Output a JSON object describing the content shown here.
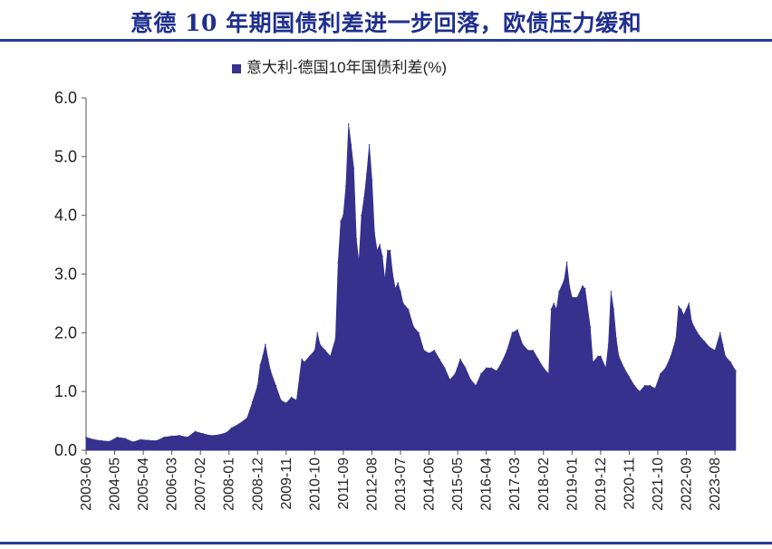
{
  "title": "意德 10 年期国债利差进一步回落，欧债压力缓和",
  "colors": {
    "title": "#1f2f8f",
    "rule": "#2b3a9c",
    "series": "#35318d"
  },
  "chart_data": {
    "type": "area",
    "legend": {
      "label": "意大利-德国10年国债利差(%)",
      "position": "top"
    },
    "ylim": [
      0,
      6
    ],
    "yticks": [
      "0.0",
      "1.0",
      "2.0",
      "3.0",
      "4.0",
      "5.0",
      "6.0"
    ],
    "xlabels": [
      "2003-06",
      "2004-05",
      "2005-04",
      "2006-03",
      "2007-02",
      "2008-01",
      "2008-12",
      "2009-11",
      "2010-10",
      "2011-09",
      "2012-08",
      "2013-07",
      "2014-06",
      "2015-05",
      "2016-04",
      "2017-03",
      "2018-02",
      "2019-01",
      "2019-12",
      "2020-11",
      "2021-10",
      "2022-09",
      "2023-08"
    ],
    "x_start": "2003-06",
    "x_end": "2024-04",
    "series": [
      {
        "name": "意大利-德国10年国债利差(%)",
        "points": [
          [
            "2003-06",
            0.22
          ],
          [
            "2003-09",
            0.18
          ],
          [
            "2003-12",
            0.16
          ],
          [
            "2004-03",
            0.15
          ],
          [
            "2004-06",
            0.22
          ],
          [
            "2004-09",
            0.2
          ],
          [
            "2004-12",
            0.14
          ],
          [
            "2005-03",
            0.18
          ],
          [
            "2005-06",
            0.17
          ],
          [
            "2005-09",
            0.16
          ],
          [
            "2005-12",
            0.22
          ],
          [
            "2006-03",
            0.24
          ],
          [
            "2006-06",
            0.25
          ],
          [
            "2006-09",
            0.22
          ],
          [
            "2006-12",
            0.32
          ],
          [
            "2007-03",
            0.28
          ],
          [
            "2007-06",
            0.25
          ],
          [
            "2007-09",
            0.26
          ],
          [
            "2007-12",
            0.3
          ],
          [
            "2008-02",
            0.38
          ],
          [
            "2008-05",
            0.45
          ],
          [
            "2008-08",
            0.55
          ],
          [
            "2008-10",
            0.82
          ],
          [
            "2008-12",
            1.1
          ],
          [
            "2009-01",
            1.45
          ],
          [
            "2009-02",
            1.6
          ],
          [
            "2009-03",
            1.8
          ],
          [
            "2009-04",
            1.55
          ],
          [
            "2009-05",
            1.35
          ],
          [
            "2009-07",
            1.1
          ],
          [
            "2009-09",
            0.85
          ],
          [
            "2009-11",
            0.8
          ],
          [
            "2010-01",
            0.9
          ],
          [
            "2010-03",
            0.85
          ],
          [
            "2010-05",
            1.55
          ],
          [
            "2010-06",
            1.5
          ],
          [
            "2010-08",
            1.6
          ],
          [
            "2010-10",
            1.7
          ],
          [
            "2010-11",
            2.0
          ],
          [
            "2010-12",
            1.8
          ],
          [
            "2011-02",
            1.7
          ],
          [
            "2011-04",
            1.6
          ],
          [
            "2011-06",
            1.9
          ],
          [
            "2011-07",
            3.2
          ],
          [
            "2011-08",
            3.9
          ],
          [
            "2011-09",
            4.0
          ],
          [
            "2011-10",
            4.5
          ],
          [
            "2011-11",
            5.55
          ],
          [
            "2011-12",
            5.2
          ],
          [
            "2012-01",
            4.8
          ],
          [
            "2012-02",
            3.6
          ],
          [
            "2012-03",
            3.2
          ],
          [
            "2012-04",
            4.0
          ],
          [
            "2012-05",
            4.3
          ],
          [
            "2012-06",
            4.7
          ],
          [
            "2012-07",
            5.2
          ],
          [
            "2012-08",
            4.6
          ],
          [
            "2012-09",
            3.7
          ],
          [
            "2012-10",
            3.4
          ],
          [
            "2012-11",
            3.5
          ],
          [
            "2012-12",
            3.3
          ],
          [
            "2013-01",
            2.9
          ],
          [
            "2013-02",
            3.4
          ],
          [
            "2013-03",
            3.4
          ],
          [
            "2013-04",
            3.0
          ],
          [
            "2013-05",
            2.75
          ],
          [
            "2013-06",
            2.85
          ],
          [
            "2013-07",
            2.7
          ],
          [
            "2013-08",
            2.5
          ],
          [
            "2013-10",
            2.4
          ],
          [
            "2013-12",
            2.1
          ],
          [
            "2014-02",
            2.0
          ],
          [
            "2014-04",
            1.7
          ],
          [
            "2014-06",
            1.65
          ],
          [
            "2014-08",
            1.7
          ],
          [
            "2014-10",
            1.55
          ],
          [
            "2014-12",
            1.4
          ],
          [
            "2015-02",
            1.2
          ],
          [
            "2015-04",
            1.3
          ],
          [
            "2015-06",
            1.55
          ],
          [
            "2015-08",
            1.4
          ],
          [
            "2015-10",
            1.2
          ],
          [
            "2015-12",
            1.1
          ],
          [
            "2016-02",
            1.3
          ],
          [
            "2016-04",
            1.4
          ],
          [
            "2016-06",
            1.4
          ],
          [
            "2016-08",
            1.35
          ],
          [
            "2016-10",
            1.5
          ],
          [
            "2016-12",
            1.7
          ],
          [
            "2017-02",
            2.0
          ],
          [
            "2017-04",
            2.05
          ],
          [
            "2017-06",
            1.8
          ],
          [
            "2017-08",
            1.7
          ],
          [
            "2017-10",
            1.7
          ],
          [
            "2017-12",
            1.55
          ],
          [
            "2018-02",
            1.4
          ],
          [
            "2018-04",
            1.3
          ],
          [
            "2018-05",
            2.4
          ],
          [
            "2018-06",
            2.5
          ],
          [
            "2018-07",
            2.4
          ],
          [
            "2018-08",
            2.7
          ],
          [
            "2018-10",
            2.9
          ],
          [
            "2018-11",
            3.2
          ],
          [
            "2018-12",
            2.8
          ],
          [
            "2019-01",
            2.6
          ],
          [
            "2019-03",
            2.6
          ],
          [
            "2019-05",
            2.8
          ],
          [
            "2019-06",
            2.75
          ],
          [
            "2019-08",
            2.1
          ],
          [
            "2019-09",
            1.5
          ],
          [
            "2019-11",
            1.6
          ],
          [
            "2019-12",
            1.6
          ],
          [
            "2020-02",
            1.4
          ],
          [
            "2020-03",
            1.8
          ],
          [
            "2020-04",
            2.7
          ],
          [
            "2020-05",
            2.4
          ],
          [
            "2020-06",
            1.9
          ],
          [
            "2020-07",
            1.6
          ],
          [
            "2020-09",
            1.4
          ],
          [
            "2020-11",
            1.25
          ],
          [
            "2021-01",
            1.1
          ],
          [
            "2021-03",
            1.0
          ],
          [
            "2021-05",
            1.1
          ],
          [
            "2021-07",
            1.1
          ],
          [
            "2021-09",
            1.05
          ],
          [
            "2021-11",
            1.3
          ],
          [
            "2022-01",
            1.4
          ],
          [
            "2022-03",
            1.6
          ],
          [
            "2022-05",
            1.9
          ],
          [
            "2022-06",
            2.45
          ],
          [
            "2022-07",
            2.4
          ],
          [
            "2022-08",
            2.3
          ],
          [
            "2022-09",
            2.4
          ],
          [
            "2022-10",
            2.5
          ],
          [
            "2022-11",
            2.2
          ],
          [
            "2022-12",
            2.1
          ],
          [
            "2023-02",
            1.95
          ],
          [
            "2023-04",
            1.85
          ],
          [
            "2023-06",
            1.75
          ],
          [
            "2023-08",
            1.7
          ],
          [
            "2023-10",
            2.0
          ],
          [
            "2023-11",
            1.8
          ],
          [
            "2023-12",
            1.6
          ],
          [
            "2024-02",
            1.5
          ],
          [
            "2024-04",
            1.35
          ]
        ]
      }
    ]
  }
}
